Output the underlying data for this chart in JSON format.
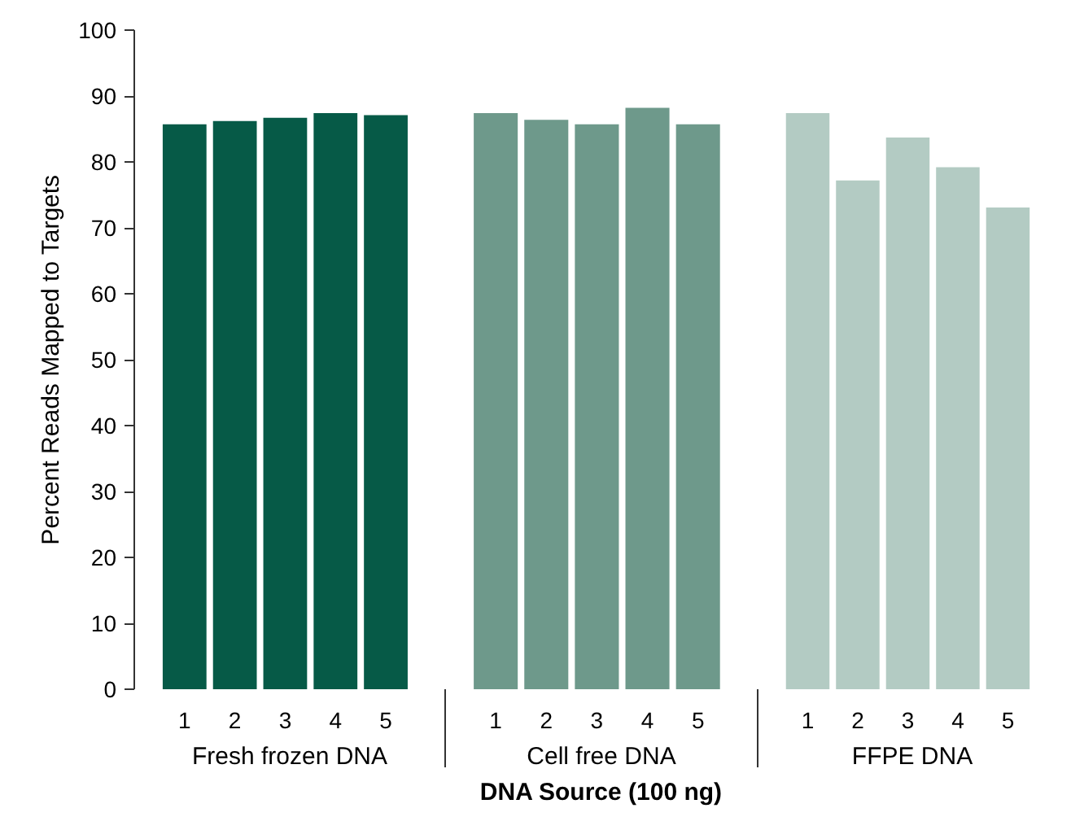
{
  "chart_data": [
    {
      "type": "bar",
      "xlabel": "Fresh frozen DNA",
      "ylabel": "Percent Reads Mapped to Targets",
      "categories": [
        "1",
        "2",
        "3",
        "4",
        "5"
      ],
      "series": [
        {
          "color": "#065a47",
          "values": [
            85.7,
            86.2,
            86.7,
            87.4,
            87.1
          ]
        }
      ],
      "ylim": [
        0,
        100
      ],
      "yticks": [
        0,
        10,
        20,
        30,
        40,
        50,
        60,
        70,
        80,
        90,
        100
      ],
      "grid": false
    },
    {
      "type": "bar",
      "xlabel": "Cell free DNA",
      "categories": [
        "1",
        "2",
        "3",
        "4",
        "5"
      ],
      "annotations": [
        "DNA Source (100 ng)"
      ],
      "series": [
        {
          "color": "#6e998b",
          "values": [
            87.4,
            86.4,
            85.7,
            88.2,
            85.7
          ]
        }
      ],
      "ylim": [
        0,
        100
      ],
      "tick_labels": "x",
      "grid": false
    },
    {
      "type": "bar",
      "xlabel": "FFPE DNA",
      "categories": [
        "1",
        "2",
        "3",
        "4",
        "5"
      ],
      "series": [
        {
          "color": "#b3cbc3",
          "values": [
            87.4,
            77.2,
            83.7,
            79.2,
            73.1
          ]
        }
      ],
      "ylim": [
        0,
        100
      ],
      "tick_labels": "x",
      "grid": false
    }
  ]
}
